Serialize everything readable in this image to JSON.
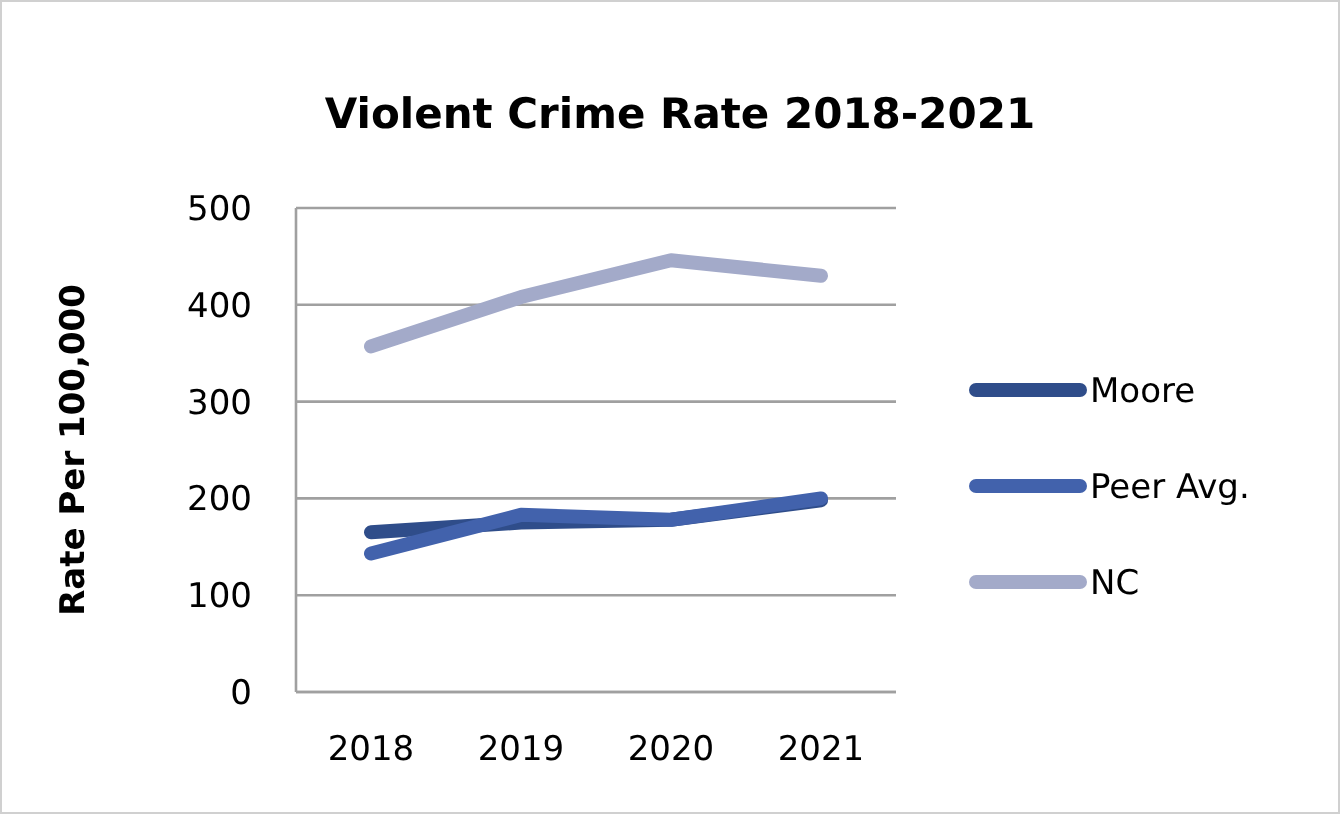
{
  "chart_data": {
    "type": "line",
    "title": "Violent Crime Rate 2018-2021",
    "ylabel": "Rate Per 100,000",
    "categories": [
      "2018",
      "2019",
      "2020",
      "2021"
    ],
    "series": [
      {
        "name": "Moore",
        "color": "#2f4d8a",
        "values": [
          165,
          175,
          178,
          198
        ]
      },
      {
        "name": "Peer Avg.",
        "color": "#4262ac",
        "values": [
          143,
          183,
          178,
          200
        ]
      },
      {
        "name": "NC",
        "color": "#a3aac9",
        "values": [
          357,
          408,
          446,
          430
        ]
      }
    ],
    "ylim": [
      0,
      500
    ],
    "yticks": [
      0,
      100,
      200,
      300,
      400,
      500
    ],
    "grid": "y",
    "legend": "right",
    "marker": "none",
    "line_style": "solid"
  }
}
